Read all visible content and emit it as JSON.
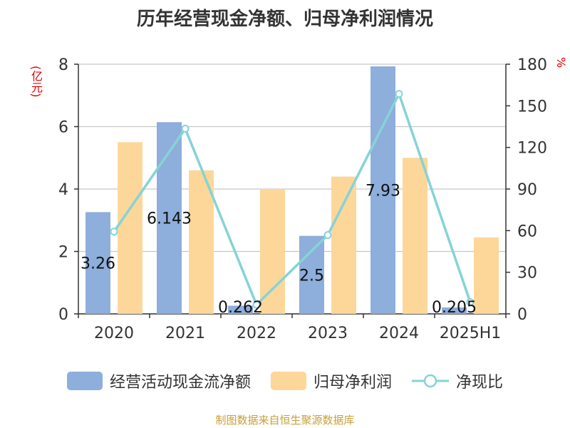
{
  "title": "历年经营现金净额、归母净利润情况",
  "source": "制图数据来自恒生聚源数据库",
  "chart_data": {
    "type": "bar",
    "title": "历年经营现金净额、归母净利润情况",
    "categories": [
      "2020",
      "2021",
      "2022",
      "2023",
      "2024",
      "2025H1"
    ],
    "ylabel_left": "(亿元)",
    "ylabel_right": "%",
    "ylim_left": [
      0,
      8
    ],
    "ylim_right": [
      0,
      180
    ],
    "yticks_left": [
      0,
      2,
      4,
      6,
      8
    ],
    "yticks_right": [
      0,
      30,
      60,
      90,
      120,
      150,
      180
    ],
    "grid": true,
    "legend_position": "bottom",
    "series": [
      {
        "name": "经营活动现金流净额",
        "type": "bar",
        "axis": "left",
        "color": "#8eaedb",
        "values": [
          3.26,
          6.143,
          0.262,
          2.5,
          7.93,
          0.205
        ],
        "labels": [
          "3.26",
          "6.143",
          "0.262",
          "2.5",
          "7.93",
          "0.205"
        ]
      },
      {
        "name": "归母净利润",
        "type": "bar",
        "axis": "left",
        "color": "#fdd799",
        "values": [
          5.5,
          4.6,
          4.0,
          4.4,
          5.0,
          2.45
        ]
      },
      {
        "name": "净现比",
        "type": "line",
        "axis": "right",
        "color": "#86d3d6",
        "values": [
          59.3,
          133.5,
          6.6,
          56.8,
          158.6,
          8.4
        ]
      }
    ]
  }
}
